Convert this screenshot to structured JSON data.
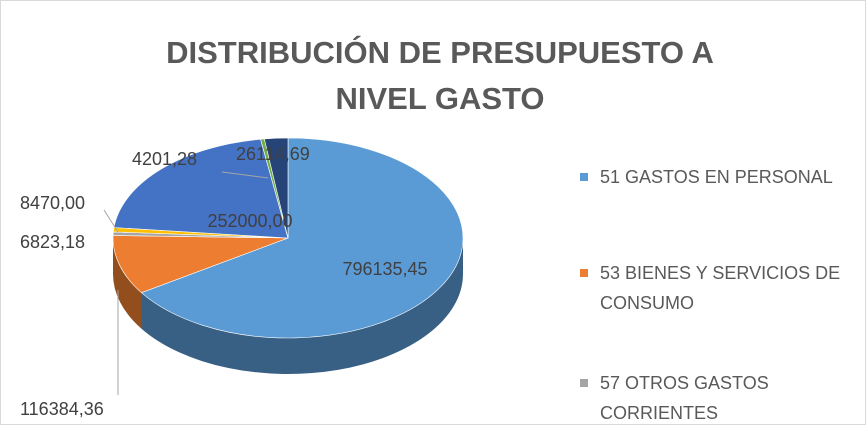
{
  "chart_data": {
    "type": "pie",
    "title": "DISTRIBUCIÓN DE PRESUPUESTO A NIVEL GASTO",
    "categories": [
      "51 GASTOS EN PERSONAL",
      "53 BIENES Y SERVICIOS DE CONSUMO",
      "57 OTROS GASTOS CORRIENTES",
      null,
      null,
      null,
      null
    ],
    "values": [
      796135.45,
      116384.36,
      6823.18,
      8470.0,
      252000.0,
      4201.28,
      26114.69
    ],
    "value_labels": [
      "796135,45",
      "116384,36",
      "6823,18",
      "8470,00",
      "252000,00",
      "4201,28",
      "26114,69"
    ],
    "colors": [
      "#5b9bd5",
      "#ed7d31",
      "#a5a5a5",
      "#ffc000",
      "#4472c4",
      "#70ad47",
      "#264478"
    ],
    "legend": "right"
  }
}
